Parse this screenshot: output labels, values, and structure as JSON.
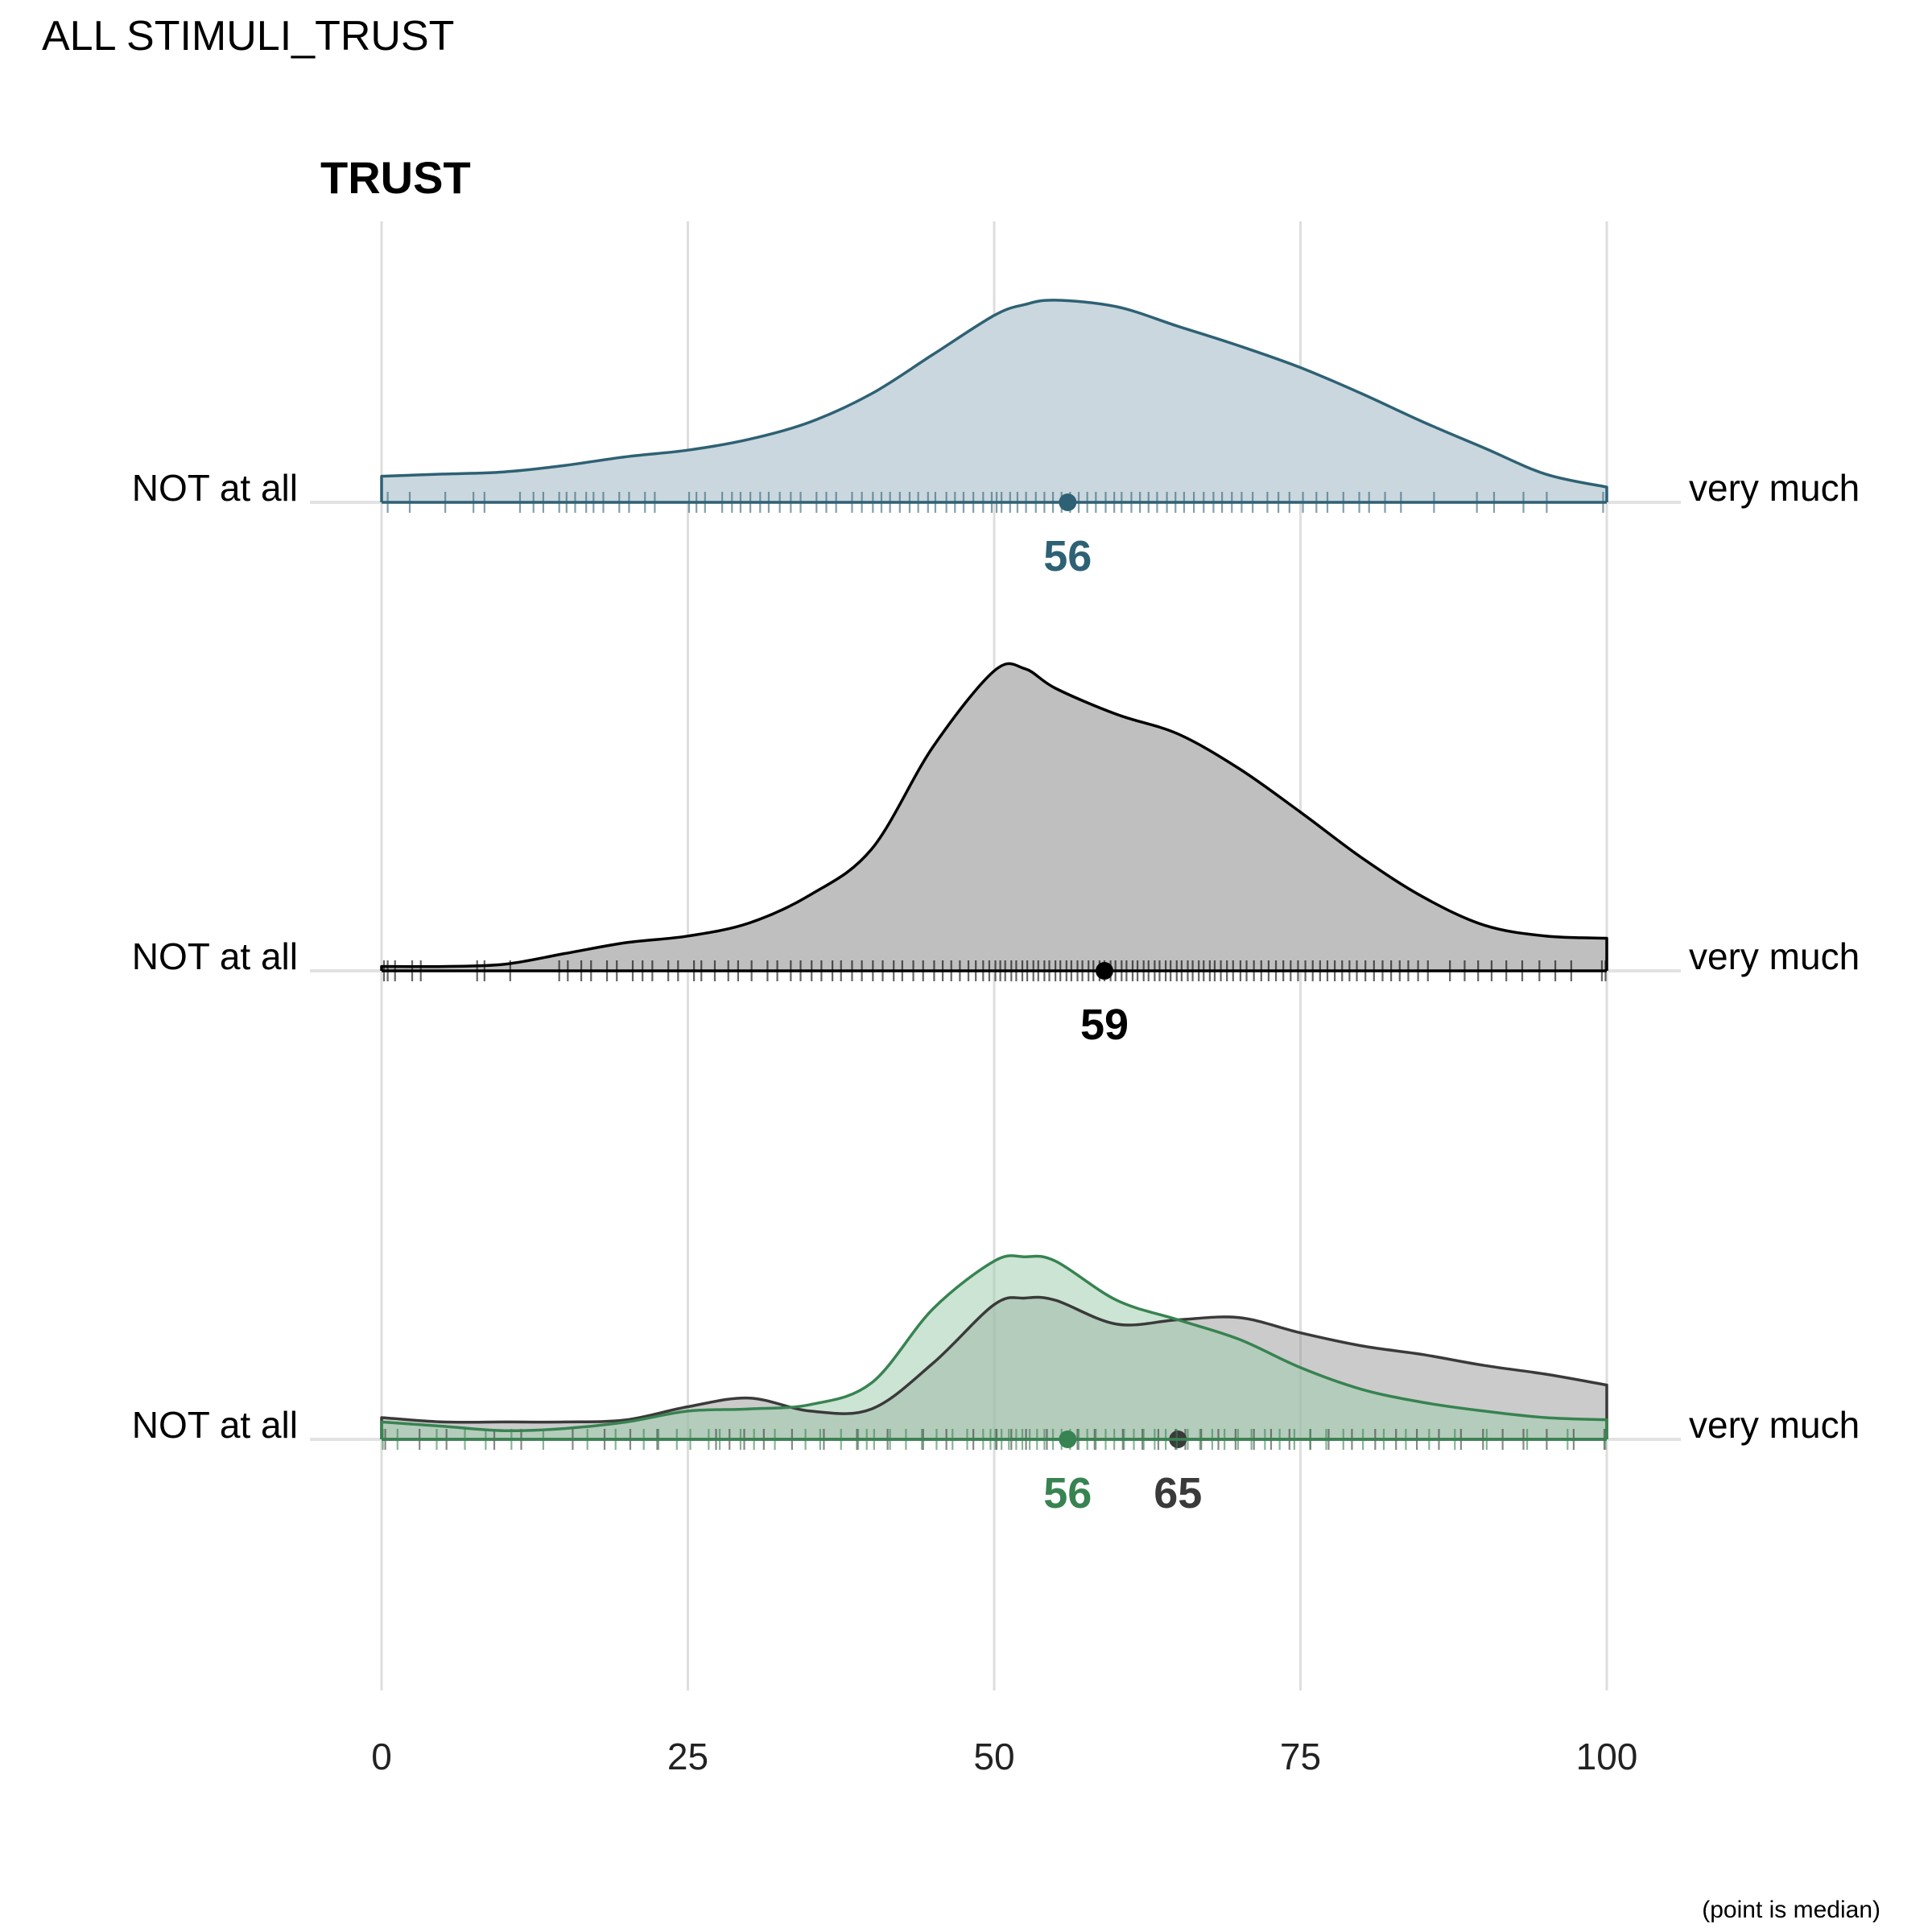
{
  "page": {
    "title": "ALL STIMULI_TRUST",
    "footnote": "(point is median)"
  },
  "chart_data": {
    "type": "area",
    "title": "TRUST",
    "xlabel": "",
    "ylabel": "",
    "xlim": [
      0,
      100
    ],
    "x_ticks": [
      "0",
      "25",
      "50",
      "75",
      "100"
    ],
    "x_tick_values": [
      0,
      25,
      50,
      75,
      100
    ],
    "grid": "vertical",
    "left_anchor": "NOT at all",
    "right_anchor": "very much",
    "x": [
      0,
      5,
      10,
      15,
      20,
      25,
      30,
      35,
      40,
      45,
      50,
      52.5,
      55,
      60,
      65,
      70,
      75,
      80,
      85,
      90,
      95,
      100
    ],
    "rows": [
      {
        "series": [
          {
            "color": "#2e6174",
            "fill": "#cad7de",
            "fill_opacity": 1,
            "density": [
              0.12,
              0.13,
              0.14,
              0.17,
              0.21,
              0.24,
              0.29,
              0.37,
              0.5,
              0.68,
              0.86,
              0.91,
              0.93,
              0.9,
              0.81,
              0.72,
              0.62,
              0.5,
              0.37,
              0.25,
              0.13,
              0.07
            ],
            "median": 56,
            "median_label": "56",
            "rug": [
              0.5,
              2.3,
              5.2,
              7.5,
              8.4,
              11.3,
              12.4,
              13.2,
              14.5,
              15.1,
              15.8,
              16.7,
              17.3,
              18.1,
              19.4,
              20.2,
              21.5,
              22.3,
              25.1,
              25.7,
              26.4,
              27.8,
              28.6,
              29.3,
              30.1,
              30.9,
              31.6,
              32.5,
              33.4,
              34.2,
              35.5,
              36.3,
              37.1,
              38.4,
              39.2,
              40.1,
              40.8,
              41.5,
              42.3,
              43.1,
              43.8,
              44.6,
              45.2,
              46.1,
              46.8,
              47.5,
              48.3,
              49.1,
              49.8,
              50.2,
              50.6,
              51.3,
              51.9,
              52.6,
              53.4,
              54.1,
              54.8,
              55.5,
              56.2,
              56.9,
              57.6,
              58.3,
              59.1,
              59.8,
              60.4,
              61.2,
              61.9,
              62.6,
              63.3,
              64.1,
              64.8,
              65.5,
              66.3,
              67.1,
              67.9,
              68.6,
              69.4,
              70.2,
              71.1,
              72.3,
              73.2,
              74.1,
              75.2,
              76.3,
              77.2,
              78.5,
              79.8,
              80.6,
              81.9,
              83.2,
              85.9,
              89.4,
              90.8,
              93.2,
              95.1,
              99.7
            ]
          }
        ]
      },
      {
        "series": [
          {
            "color": "#000000",
            "fill": "#bfbfbf",
            "fill_opacity": 1,
            "density": [
              0.02,
              0.02,
              0.03,
              0.08,
              0.13,
              0.16,
              0.22,
              0.35,
              0.56,
              1.03,
              1.38,
              1.39,
              1.3,
              1.18,
              1.09,
              0.93,
              0.73,
              0.52,
              0.34,
              0.21,
              0.16,
              0.15
            ],
            "median": 59,
            "median_label": "59",
            "rug": [
              0.2,
              0.5,
              1.1,
              2.5,
              3.2,
              7.8,
              8.4,
              10.5,
              14.5,
              15.2,
              16.3,
              17.1,
              18.4,
              19.2,
              20.5,
              21.3,
              22.1,
              23.4,
              24.2,
              25.5,
              26.1,
              27.2,
              28.3,
              29.1,
              30.2,
              31.5,
              32.3,
              33.4,
              34.2,
              35.1,
              35.9,
              36.8,
              37.5,
              38.4,
              39.2,
              40.1,
              40.9,
              41.8,
              42.5,
              43.4,
              44.2,
              45.1,
              45.8,
              46.5,
              47.2,
              47.9,
              48.5,
              49.1,
              49.6,
              50.1,
              50.5,
              50.9,
              51.4,
              51.8,
              52.3,
              52.7,
              53.2,
              53.6,
              54.1,
              54.5,
              55.0,
              55.4,
              55.9,
              56.3,
              56.8,
              57.2,
              57.7,
              58.1,
              58.6,
              59.0,
              59.5,
              59.9,
              60.4,
              60.8,
              61.3,
              61.7,
              62.2,
              62.6,
              63.1,
              63.5,
              64.0,
              64.4,
              64.9,
              65.3,
              65.8,
              66.2,
              66.7,
              67.1,
              67.6,
              68.0,
              68.5,
              69.0,
              69.5,
              70.1,
              70.6,
              71.2,
              71.8,
              72.4,
              73.0,
              73.6,
              74.2,
              74.8,
              75.4,
              76.0,
              76.6,
              77.2,
              77.8,
              78.4,
              79.0,
              79.6,
              80.3,
              81.0,
              81.7,
              82.4,
              83.1,
              83.8,
              84.6,
              85.4,
              87.2,
              88.4,
              89.5,
              90.6,
              91.8,
              93.1,
              94.5,
              95.8,
              97.1,
              99.6,
              99.9
            ]
          }
        ]
      },
      {
        "series": [
          {
            "color": "#3a3a3a",
            "fill": "#8c8c8c",
            "fill_opacity": 0.45,
            "density": [
              0.1,
              0.08,
              0.08,
              0.08,
              0.09,
              0.15,
              0.19,
              0.13,
              0.14,
              0.35,
              0.62,
              0.65,
              0.64,
              0.53,
              0.55,
              0.56,
              0.49,
              0.43,
              0.39,
              0.34,
              0.3,
              0.25
            ],
            "median": 65,
            "median_label": "65",
            "rug": [
              0.3,
              3.1,
              5.3,
              9.2,
              11.4,
              15.6,
              18.2,
              20.3,
              22.5,
              27.3,
              28.4,
              29.6,
              31.2,
              33.5,
              36.1,
              38.8,
              41.3,
              44.2,
              46.1,
              48.3,
              50.2,
              51.4,
              52.6,
              54.3,
              56.8,
              58.2,
              60.5,
              62.1,
              63.4,
              64.8,
              65.6,
              66.9,
              68.3,
              69.7,
              71.2,
              72.6,
              74.1,
              75.8,
              77.3,
              79.2,
              81.1,
              82.8,
              84.5,
              86.3,
              88.1,
              89.9,
              91.5,
              93.2,
              95.1,
              97.3,
              99.8
            ]
          },
          {
            "color": "#378351",
            "fill": "#a3cdae",
            "fill_opacity": 0.55,
            "density": [
              0.08,
              0.06,
              0.04,
              0.05,
              0.08,
              0.13,
              0.14,
              0.16,
              0.26,
              0.6,
              0.82,
              0.84,
              0.82,
              0.64,
              0.55,
              0.46,
              0.33,
              0.23,
              0.17,
              0.13,
              0.1,
              0.09
            ],
            "median": 56,
            "median_label": "56",
            "rug": [
              0.1,
              1.3,
              4.5,
              6.8,
              8.5,
              10.6,
              13.2,
              16.8,
              19.1,
              21.4,
              22.6,
              24.1,
              25.2,
              26.7,
              27.6,
              29.3,
              30.4,
              32.1,
              34.6,
              35.8,
              37.5,
              38.9,
              39.6,
              40.2,
              41.5,
              42.8,
              44.1,
              45.3,
              46.6,
              47.8,
              49.1,
              49.7,
              50.1,
              50.6,
              51.2,
              51.8,
              52.3,
              52.9,
              53.5,
              54.1,
              54.8,
              55.5,
              56.2,
              56.9,
              57.6,
              58.3,
              59.1,
              59.8,
              60.6,
              61.4,
              62.2,
              63.1,
              64.0,
              64.9,
              65.8,
              66.8,
              67.8,
              68.8,
              69.9,
              71.0,
              72.1,
              73.3,
              74.5,
              75.8,
              77.1,
              78.5,
              80.1,
              81.8,
              83.6,
              85.5,
              87.6,
              90.2,
              93.5,
              96.8,
              99.9
            ]
          }
        ]
      }
    ]
  }
}
